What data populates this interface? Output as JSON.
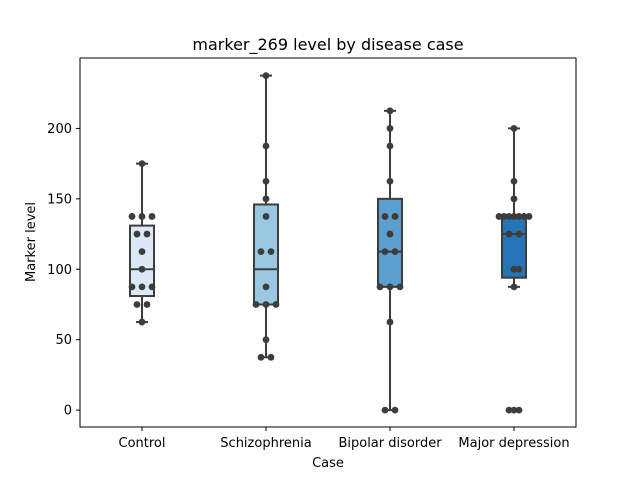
{
  "chart_data": {
    "type": "box",
    "title": "marker_269 level by disease case",
    "xlabel": "Case",
    "ylabel": "Marker level",
    "ylim": [
      -12,
      250
    ],
    "yticks": [
      0,
      50,
      100,
      150,
      200
    ],
    "grid": false,
    "legend": "none",
    "categories": [
      "Control",
      "Schizophrenia",
      "Bipolar disorder",
      "Major depression"
    ],
    "colors": [
      "#dbe9f6",
      "#9ac8e0",
      "#5a9fcf",
      "#2474b6"
    ],
    "boxes": [
      {
        "q1": 81,
        "median": 100,
        "q3": 131,
        "whisker_low": 62.5,
        "whisker_high": 175
      },
      {
        "q1": 75,
        "median": 100,
        "q3": 146,
        "whisker_low": 37.5,
        "whisker_high": 237.5
      },
      {
        "q1": 87.5,
        "median": 112.5,
        "q3": 150,
        "whisker_low": 0,
        "whisker_high": 212.5
      },
      {
        "q1": 94,
        "median": 125,
        "q3": 137.5,
        "whisker_low": 87.5,
        "whisker_high": 200
      }
    ],
    "points": [
      [
        [
          62.5,
          0
        ],
        [
          75,
          -1
        ],
        [
          75,
          1
        ],
        [
          87.5,
          -2
        ],
        [
          87.5,
          0
        ],
        [
          87.5,
          2
        ],
        [
          100,
          0
        ],
        [
          112.5,
          0
        ],
        [
          125,
          -1
        ],
        [
          125,
          1
        ],
        [
          137.5,
          -2
        ],
        [
          137.5,
          0
        ],
        [
          137.5,
          2
        ],
        [
          175,
          0
        ]
      ],
      [
        [
          37.5,
          -1
        ],
        [
          37.5,
          1
        ],
        [
          50,
          0
        ],
        [
          75,
          -2
        ],
        [
          75,
          0
        ],
        [
          75,
          2
        ],
        [
          87.5,
          0
        ],
        [
          112.5,
          -1
        ],
        [
          112.5,
          1
        ],
        [
          137.5,
          0
        ],
        [
          150,
          0
        ],
        [
          162.5,
          0
        ],
        [
          187.5,
          0
        ],
        [
          237.5,
          0
        ]
      ],
      [
        [
          0,
          -1
        ],
        [
          0,
          1
        ],
        [
          62.5,
          0
        ],
        [
          87.5,
          -2
        ],
        [
          87.5,
          0
        ],
        [
          87.5,
          2
        ],
        [
          112.5,
          -1
        ],
        [
          112.5,
          1
        ],
        [
          125,
          0
        ],
        [
          137.5,
          -1
        ],
        [
          137.5,
          1
        ],
        [
          162.5,
          0
        ],
        [
          187.5,
          0
        ],
        [
          200,
          0
        ],
        [
          212.5,
          0
        ]
      ],
      [
        [
          0,
          -1
        ],
        [
          0,
          0
        ],
        [
          0,
          1
        ],
        [
          87.5,
          0
        ],
        [
          100,
          0
        ],
        [
          100,
          1
        ],
        [
          125,
          -1
        ],
        [
          125,
          1
        ],
        [
          137.5,
          -3
        ],
        [
          137.5,
          -2
        ],
        [
          137.5,
          -1
        ],
        [
          137.5,
          0
        ],
        [
          137.5,
          1
        ],
        [
          137.5,
          2
        ],
        [
          137.5,
          3
        ],
        [
          150,
          0
        ],
        [
          162.5,
          0
        ],
        [
          200,
          0
        ]
      ]
    ]
  }
}
